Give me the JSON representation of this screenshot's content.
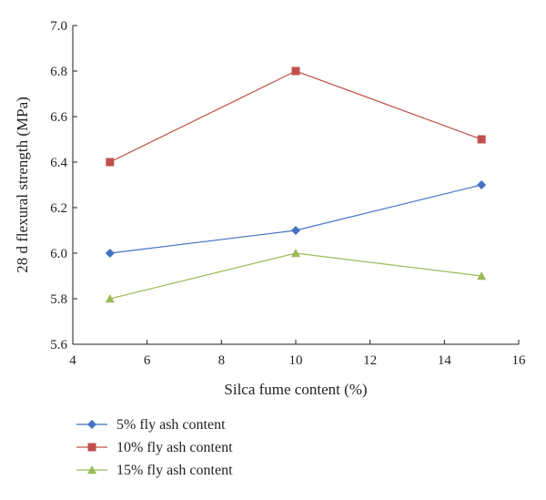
{
  "chart_data": {
    "type": "line",
    "xlabel": "Silca fume content (%)",
    "ylabel": "28 d flexural strength (MPa)",
    "xlim": [
      4,
      16
    ],
    "ylim": [
      5.6,
      7.0
    ],
    "xticks": [
      4,
      6,
      8,
      10,
      12,
      14,
      16
    ],
    "yticks": [
      5.6,
      5.8,
      6.0,
      6.2,
      6.4,
      6.6,
      6.8,
      7.0
    ],
    "grid": false,
    "legend_position": "bottom-left",
    "series": [
      {
        "name": "5% fly ash content",
        "marker": "diamond",
        "color": "#4472c4",
        "x": [
          5,
          10,
          15
        ],
        "y": [
          6.0,
          6.1,
          6.3
        ]
      },
      {
        "name": "10% fly ash content",
        "marker": "square",
        "color": "#c0504d",
        "x": [
          5,
          10,
          15
        ],
        "y": [
          6.4,
          6.8,
          6.5
        ]
      },
      {
        "name": "15% fly ash content",
        "marker": "triangle",
        "color": "#9bbb59",
        "x": [
          5,
          10,
          15
        ],
        "y": [
          5.8,
          6.0,
          5.9
        ]
      }
    ]
  }
}
